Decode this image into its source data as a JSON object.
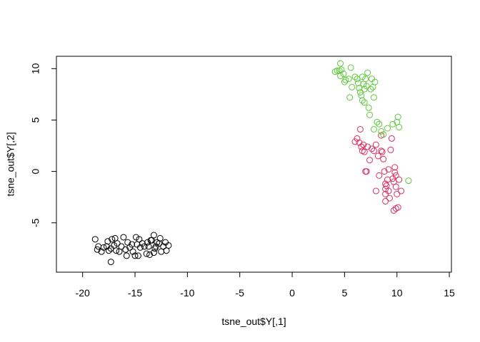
{
  "chart_data": {
    "type": "scatter",
    "title": "",
    "xlabel": "tsne_out$Y[,1]",
    "ylabel": "tsne_out$Y[,2]",
    "xlim": [
      -22.5,
      15.2
    ],
    "ylim": [
      -9.8,
      11.2
    ],
    "xticks": [
      -20,
      -15,
      -10,
      -5,
      0,
      5,
      10,
      15
    ],
    "yticks": [
      -5,
      0,
      5,
      10
    ],
    "xtick_labels": [
      "-20",
      "-15",
      "-10",
      "-5",
      "0",
      "5",
      "10",
      "15"
    ],
    "ytick_labels": [
      "-5",
      "0",
      "5",
      "10"
    ],
    "grid": false,
    "legend": null,
    "marker": "open-circle",
    "series": [
      {
        "color": "#000000",
        "points": [
          [
            -18.8,
            -6.6
          ],
          [
            -18.6,
            -7.6
          ],
          [
            -18.5,
            -7.3
          ],
          [
            -18.2,
            -7.8
          ],
          [
            -18.0,
            -7.4
          ],
          [
            -17.7,
            -7.3
          ],
          [
            -17.6,
            -6.8
          ],
          [
            -17.5,
            -7.7
          ],
          [
            -17.3,
            -7.5
          ],
          [
            -17.3,
            -8.8
          ],
          [
            -17.2,
            -6.6
          ],
          [
            -17.0,
            -7.2
          ],
          [
            -16.9,
            -6.5
          ],
          [
            -16.8,
            -7.7
          ],
          [
            -16.7,
            -7.0
          ],
          [
            -16.5,
            -7.8
          ],
          [
            -16.3,
            -7.3
          ],
          [
            -16.1,
            -6.4
          ],
          [
            -15.9,
            -7.6
          ],
          [
            -15.8,
            -8.2
          ],
          [
            -15.7,
            -6.9
          ],
          [
            -15.5,
            -7.4
          ],
          [
            -15.3,
            -7.1
          ],
          [
            -15.2,
            -7.8
          ],
          [
            -15.0,
            -8.2
          ],
          [
            -14.9,
            -6.4
          ],
          [
            -14.8,
            -7.1
          ],
          [
            -14.7,
            -8.2
          ],
          [
            -14.6,
            -6.6
          ],
          [
            -14.5,
            -7.4
          ],
          [
            -14.3,
            -7.0
          ],
          [
            -14.1,
            -7.3
          ],
          [
            -13.9,
            -8.0
          ],
          [
            -13.8,
            -6.9
          ],
          [
            -13.7,
            -7.3
          ],
          [
            -13.6,
            -8.1
          ],
          [
            -13.5,
            -6.7
          ],
          [
            -13.4,
            -6.7
          ],
          [
            -13.2,
            -7.9
          ],
          [
            -13.1,
            -7.5
          ],
          [
            -13.0,
            -7.3
          ],
          [
            -13.2,
            -6.2
          ],
          [
            -12.9,
            -6.9
          ],
          [
            -12.7,
            -7.0
          ],
          [
            -12.6,
            -6.5
          ],
          [
            -12.5,
            -7.8
          ],
          [
            -12.3,
            -7.3
          ],
          [
            -12.1,
            -6.9
          ],
          [
            -12.0,
            -7.7
          ],
          [
            -11.8,
            -7.2
          ]
        ]
      },
      {
        "color": "#dc2f60",
        "points": [
          [
            6.0,
            2.9
          ],
          [
            6.2,
            3.2
          ],
          [
            6.4,
            2.8
          ],
          [
            6.5,
            4.1
          ],
          [
            6.6,
            2.4
          ],
          [
            6.7,
            2.0
          ],
          [
            6.8,
            2.6
          ],
          [
            6.9,
            1.9
          ],
          [
            7.0,
            0.0
          ],
          [
            7.1,
            0.0
          ],
          [
            7.2,
            2.4
          ],
          [
            7.4,
            1.1
          ],
          [
            7.6,
            2.2
          ],
          [
            7.8,
            2.0
          ],
          [
            8.0,
            2.6
          ],
          [
            8.2,
            1.5
          ],
          [
            8.3,
            -0.4
          ],
          [
            8.5,
            2.0
          ],
          [
            8.5,
            3.5
          ],
          [
            8.6,
            1.9
          ],
          [
            8.7,
            1.2
          ],
          [
            8.8,
            0.0
          ],
          [
            8.9,
            -1.7
          ],
          [
            8.9,
            -2.2
          ],
          [
            9.0,
            -1.4
          ],
          [
            9.1,
            -0.8
          ],
          [
            9.2,
            0.2
          ],
          [
            9.2,
            -1.9
          ],
          [
            9.3,
            -2.6
          ],
          [
            9.4,
            2.1
          ],
          [
            9.5,
            3.2
          ],
          [
            9.6,
            -0.7
          ],
          [
            9.7,
            -1.0
          ],
          [
            9.7,
            -3.8
          ],
          [
            9.8,
            -0.1
          ],
          [
            9.8,
            0.4
          ],
          [
            9.9,
            -0.4
          ],
          [
            9.9,
            -1.5
          ],
          [
            9.9,
            -3.6
          ],
          [
            10.0,
            -2.2
          ],
          [
            10.1,
            -3.5
          ],
          [
            10.2,
            -0.8
          ],
          [
            10.4,
            -1.9
          ],
          [
            8.0,
            -1.9
          ],
          [
            8.9,
            -2.9
          ],
          [
            8.9,
            -1.2
          ]
        ]
      },
      {
        "color": "#5dc93b",
        "points": [
          [
            4.1,
            9.7
          ],
          [
            4.3,
            9.8
          ],
          [
            4.5,
            9.8
          ],
          [
            4.6,
            9.3
          ],
          [
            4.6,
            10.5
          ],
          [
            4.7,
            9.9
          ],
          [
            4.9,
            9.5
          ],
          [
            5.0,
            8.7
          ],
          [
            5.1,
            8.9
          ],
          [
            5.4,
            9.0
          ],
          [
            5.5,
            7.2
          ],
          [
            5.6,
            10.1
          ],
          [
            5.7,
            8.2
          ],
          [
            6.0,
            9.2
          ],
          [
            6.2,
            9.0
          ],
          [
            6.3,
            8.6
          ],
          [
            6.4,
            8.1
          ],
          [
            6.5,
            7.7
          ],
          [
            6.6,
            7.4
          ],
          [
            6.7,
            6.9
          ],
          [
            6.7,
            9.2
          ],
          [
            6.8,
            8.5
          ],
          [
            6.9,
            8.0
          ],
          [
            6.9,
            6.7
          ],
          [
            7.0,
            9.0
          ],
          [
            7.1,
            8.3
          ],
          [
            7.2,
            9.6
          ],
          [
            7.3,
            6.2
          ],
          [
            7.4,
            5.5
          ],
          [
            7.5,
            8.0
          ],
          [
            7.6,
            9.0
          ],
          [
            7.7,
            8.2
          ],
          [
            7.8,
            7.2
          ],
          [
            7.9,
            8.7
          ],
          [
            7.8,
            4.1
          ],
          [
            8.1,
            4.8
          ],
          [
            8.3,
            4.6
          ],
          [
            8.5,
            3.9
          ],
          [
            8.7,
            3.6
          ],
          [
            9.1,
            4.2
          ],
          [
            9.6,
            4.6
          ],
          [
            10.0,
            4.8
          ],
          [
            10.1,
            5.3
          ],
          [
            10.2,
            4.3
          ],
          [
            11.1,
            -0.9
          ]
        ]
      }
    ]
  }
}
